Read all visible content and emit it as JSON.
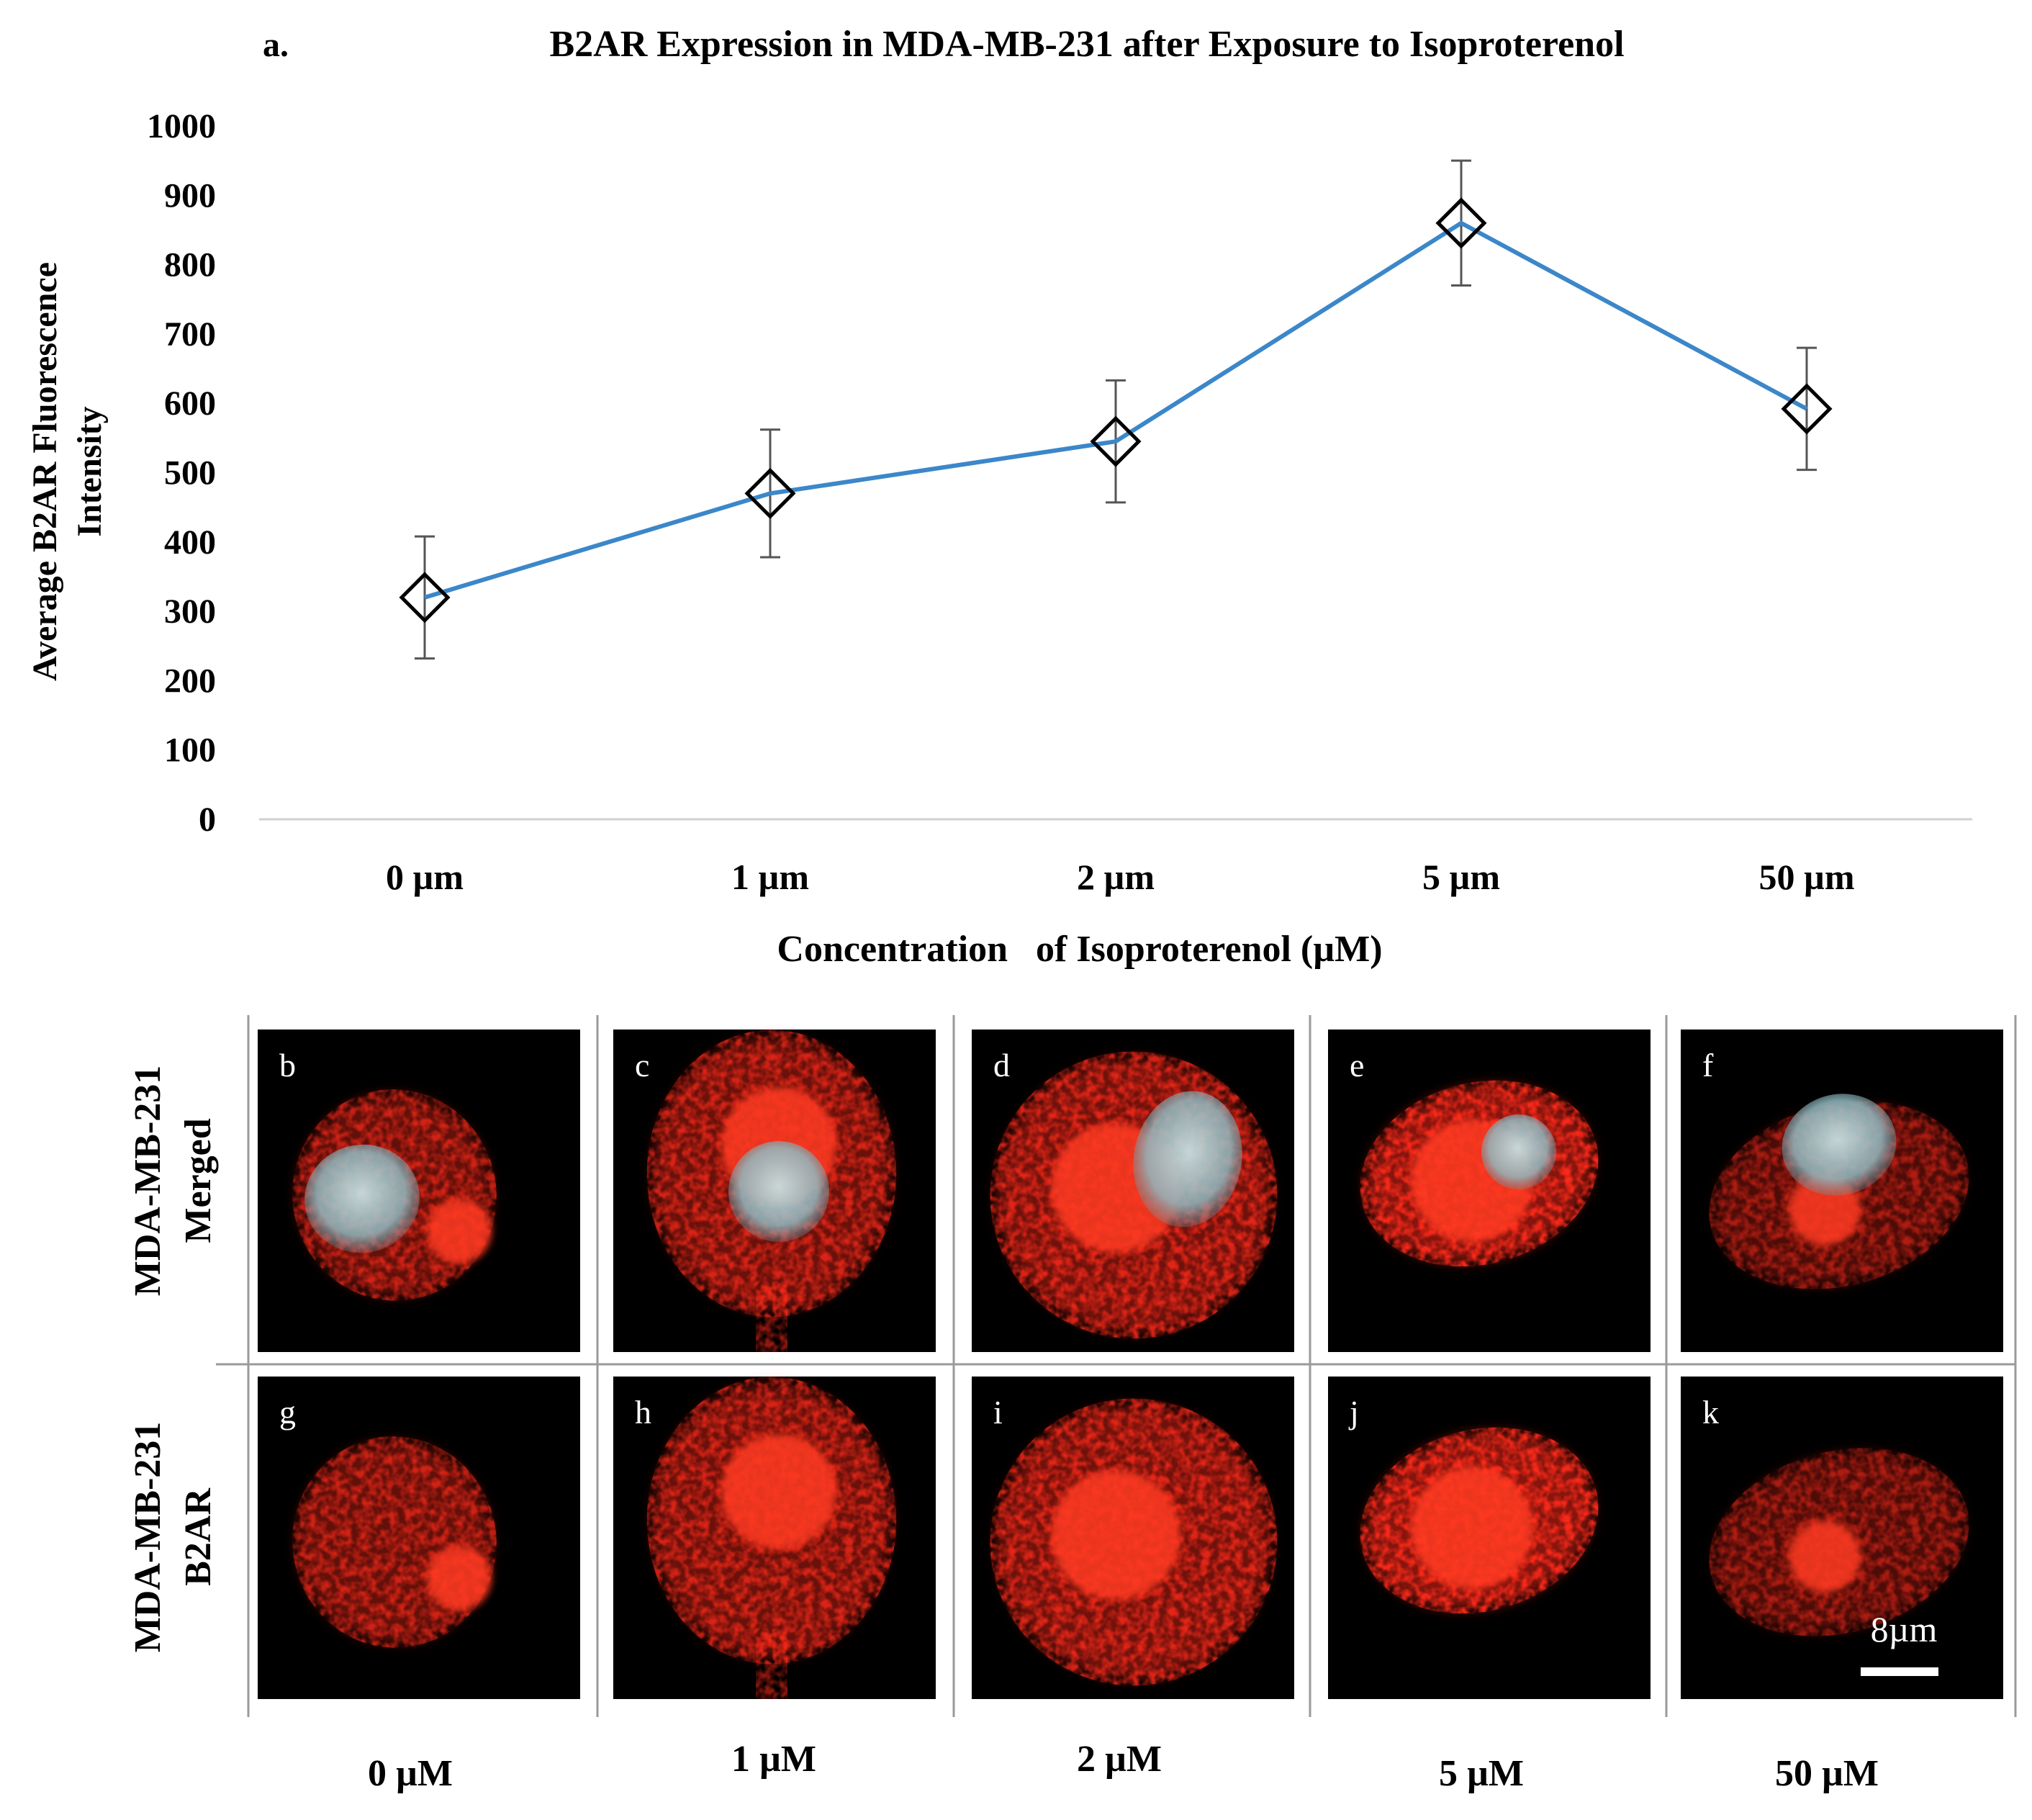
{
  "panel_a_label": "a.",
  "chart_data": {
    "type": "line",
    "title": "B2AR Expression in MDA-MB-231 after Exposure to Isoproterenol",
    "categories": [
      "0 µm",
      "1 µm",
      "2 µm",
      "5 µm",
      "50 µm"
    ],
    "values": [
      320,
      470,
      545,
      860,
      592
    ],
    "error": [
      88,
      92,
      88,
      90,
      88
    ],
    "xlabel": "Concentration   of Isoproterenol (µM)",
    "ylabel_lines": [
      "Average B2AR Fluorescence",
      "Intensity"
    ],
    "ylim": [
      0,
      1000
    ],
    "yticks": [
      0,
      100,
      200,
      300,
      400,
      500,
      600,
      700,
      800,
      900,
      1000
    ],
    "line_color": "#3b87c9",
    "marker": "diamond"
  },
  "micrographs": {
    "row_labels": [
      [
        "MDA-MB-231",
        "Merged"
      ],
      [
        "MDA-MB-231",
        "B2AR"
      ]
    ],
    "panel_letters": [
      [
        "b",
        "c",
        "d",
        "e",
        "f"
      ],
      [
        "g",
        "h",
        "i",
        "j",
        "k"
      ]
    ],
    "column_labels": [
      "0 µM",
      "1 µM",
      "2 µM",
      "5 µM",
      "50 µM"
    ],
    "scale_bar_label": "8µm",
    "stain_color": "#ff2a1a",
    "nucleus_color": "#9fc7cc"
  }
}
